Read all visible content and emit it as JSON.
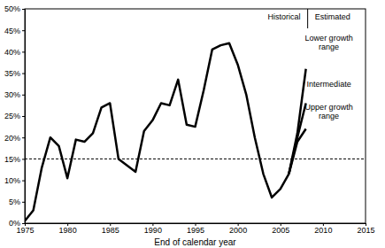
{
  "chart_data": {
    "type": "line",
    "x_label": "End of calendar year",
    "annotations": [
      "Estimated"
    ],
    "xlim": [
      1975,
      2015
    ],
    "xticks": [
      1975,
      1980,
      1985,
      1990,
      1995,
      2000,
      2005,
      2010,
      2015
    ],
    "ylim": [
      0,
      50
    ],
    "yticks": [
      {
        "value": 0,
        "label": "0%"
      },
      {
        "value": 5,
        "label": "5%"
      },
      {
        "value": 10,
        "label": "10%"
      },
      {
        "value": 15,
        "label": "15%"
      },
      {
        "value": 20,
        "label": "20%"
      },
      {
        "value": 25,
        "label": "25%"
      },
      {
        "value": 30,
        "label": "30%"
      },
      {
        "value": 35,
        "label": "35%"
      },
      {
        "value": 40,
        "label": "40%"
      },
      {
        "value": 45,
        "label": "45%"
      },
      {
        "value": 50,
        "label": "50%"
      }
    ],
    "reference_y": 15,
    "series": [
      {
        "name": "Historical",
        "color": "#000000",
        "x": [
          1975,
          1976,
          1977,
          1978,
          1979,
          1980,
          1981,
          1982,
          1983,
          1984,
          1985,
          1986,
          1987,
          1988,
          1989,
          1990,
          1991,
          1992,
          1993,
          1994,
          1995,
          1996,
          1997,
          1998,
          1999,
          2000,
          2001,
          2002,
          2003,
          2004,
          2005,
          2006
        ],
        "values": [
          0.5,
          3,
          13,
          20,
          18,
          10.5,
          19.5,
          19,
          21,
          27,
          28,
          15,
          13.5,
          12,
          21.5,
          24,
          28,
          27.5,
          33.5,
          23,
          22.5,
          31,
          40.5,
          41.5,
          42,
          37,
          30,
          20,
          11.5,
          6,
          8,
          11.5
        ]
      },
      {
        "name": "Lower growth range",
        "color": "#000000",
        "x": [
          2006,
          2007,
          2008
        ],
        "values": [
          11.5,
          21,
          36
        ]
      },
      {
        "name": "Intermediate",
        "color": "#000000",
        "x": [
          2006,
          2007,
          2008
        ],
        "values": [
          11.5,
          20,
          28
        ]
      },
      {
        "name": "Upper growth range",
        "color": "#000000",
        "x": [
          2006,
          2007,
          2008
        ],
        "values": [
          11.5,
          19,
          22
        ]
      }
    ]
  }
}
